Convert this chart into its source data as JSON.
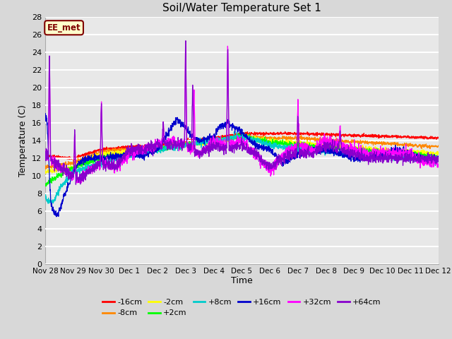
{
  "title": "Soil/Water Temperature Set 1",
  "xlabel": "Time",
  "ylabel": "Temperature (C)",
  "ylim": [
    0,
    28
  ],
  "yticks": [
    0,
    2,
    4,
    6,
    8,
    10,
    12,
    14,
    16,
    18,
    20,
    22,
    24,
    26,
    28
  ],
  "bg_color": "#d8d8d8",
  "plot_bg_color": "#e8e8e8",
  "grid_color": "#ffffff",
  "annotation_text": "EE_met",
  "annotation_bg": "#ffffcc",
  "annotation_border": "#800000",
  "series": [
    {
      "label": "-16cm",
      "color": "#ff0000"
    },
    {
      "label": "-8cm",
      "color": "#ff8800"
    },
    {
      "label": "-2cm",
      "color": "#ffff00"
    },
    {
      "label": "+2cm",
      "color": "#00ff00"
    },
    {
      "label": "+8cm",
      "color": "#00cccc"
    },
    {
      "label": "+16cm",
      "color": "#0000cc"
    },
    {
      "label": "+32cm",
      "color": "#ff00ff"
    },
    {
      "label": "+64cm",
      "color": "#8800cc"
    }
  ],
  "x_start": 0,
  "x_end": 14,
  "xtick_positions": [
    0,
    1,
    2,
    3,
    4,
    5,
    6,
    7,
    8,
    9,
    10,
    11,
    12,
    13,
    14
  ],
  "xtick_labels": [
    "Nov 28",
    "Nov 29",
    "Nov 30",
    "Dec 1",
    "Dec 2",
    "Dec 3",
    "Dec 4",
    "Dec 5",
    "Dec 6",
    "Dec 7",
    "Dec 8",
    "Dec 9",
    "Dec 10",
    "Dec 11",
    "Dec 12"
  ]
}
